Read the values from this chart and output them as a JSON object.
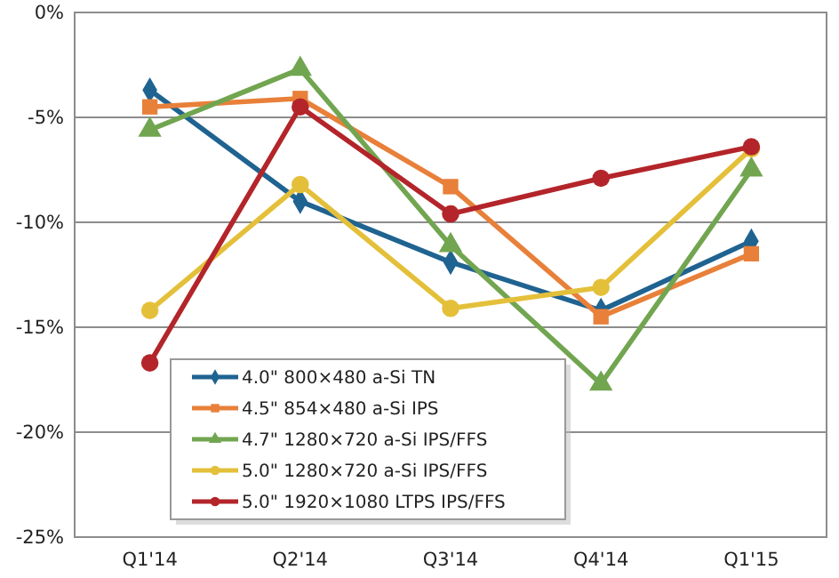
{
  "chart_data": {
    "type": "line",
    "categories": [
      "Q1'14",
      "Q2'14",
      "Q3'14",
      "Q4'14",
      "Q1'15"
    ],
    "ylim": [
      -25,
      0
    ],
    "yticks": [
      {
        "value": -25,
        "label": "-25%"
      },
      {
        "value": -20,
        "label": "-20%"
      },
      {
        "value": -15,
        "label": "-15%"
      },
      {
        "value": -10,
        "label": "-10%"
      },
      {
        "value": -5,
        "label": "-5%"
      },
      {
        "value": 0,
        "label": "0%"
      }
    ],
    "grid": "y",
    "legend": "bottom left",
    "series": [
      {
        "name": "4.0\" 800×480 a-Si TN",
        "color": "#1f6391",
        "marker": "diamond",
        "values": [
          -3.7,
          -9.0,
          -11.9,
          -14.2,
          -10.9
        ]
      },
      {
        "name": "4.5\" 854×480 a-Si IPS",
        "color": "#e8803a",
        "marker": "square",
        "values": [
          -4.5,
          -4.1,
          -8.3,
          -14.5,
          -11.5
        ]
      },
      {
        "name": "4.7\" 1280×720 a-Si IPS/FFS",
        "color": "#72a550",
        "marker": "triangle",
        "values": [
          -5.6,
          -2.7,
          -11.1,
          -17.7,
          -7.5
        ]
      },
      {
        "name": "5.0\" 1280×720 a-Si IPS/FFS",
        "color": "#e4c03a",
        "marker": "circle",
        "values": [
          -14.2,
          -8.2,
          -14.1,
          -13.1,
          -6.5
        ]
      },
      {
        "name": "5.0\" 1920×1080 LTPS IPS/FFS",
        "color": "#b3252a",
        "marker": "circle",
        "values": [
          -16.7,
          -4.5,
          -9.6,
          -7.9,
          -6.4
        ]
      }
    ]
  }
}
